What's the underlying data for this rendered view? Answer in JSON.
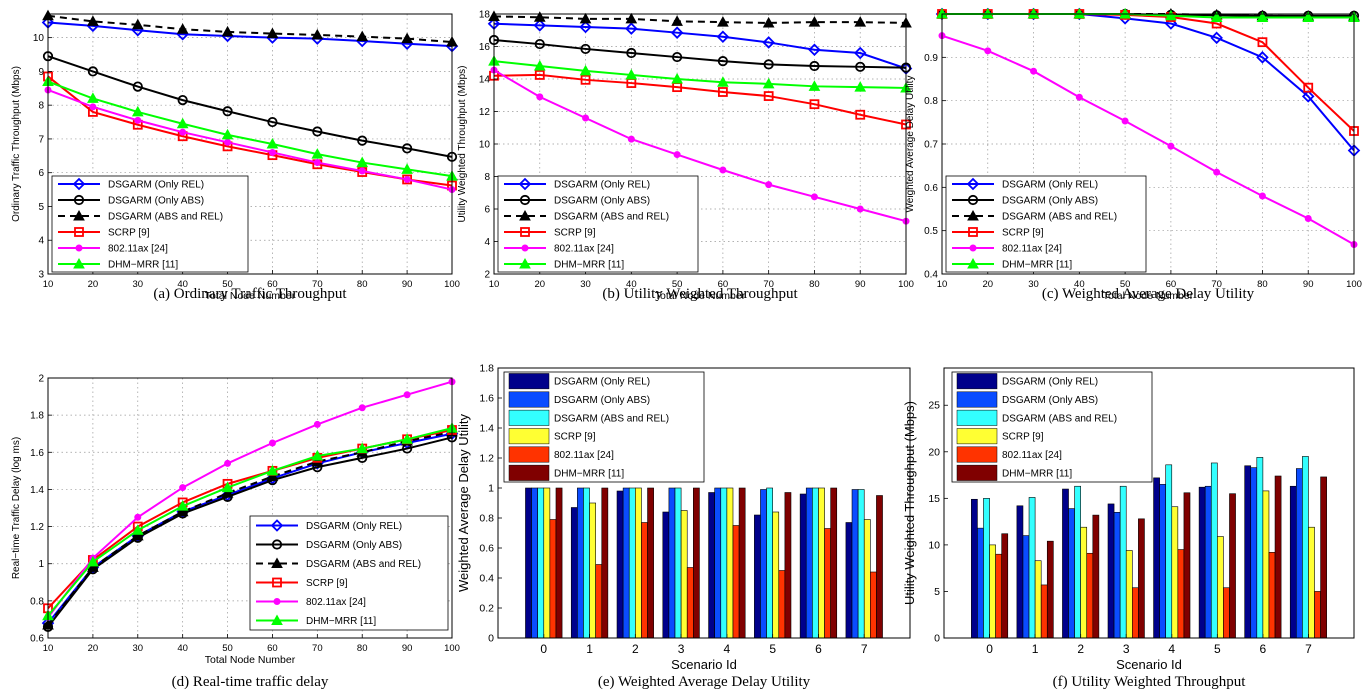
{
  "legend_line": [
    "DSGARM (Only REL)",
    "DSGARM (Only ABS)",
    "DSGARM (ABS and REL)",
    "SCRP [9]",
    "802.11ax [24]",
    "DHM−MRR [11]"
  ],
  "legend_bar": [
    "DSGARM (Only REL)",
    "DSGARM (Only ABS)",
    "DSGARM (ABS and REL)",
    "SCRP [9]",
    "802.11ax [24]",
    "DHM−MRR [11]"
  ],
  "line_colors": [
    "#0000ff",
    "#000000",
    "#000000",
    "#ff0000",
    "#ff00ff",
    "#00ff00"
  ],
  "line_markers": [
    "diamond",
    "circle",
    "triangle",
    "square",
    "dot",
    "triangle"
  ],
  "line_dashed": [
    false,
    false,
    true,
    false,
    false,
    false
  ],
  "bar_colors": [
    "#00008b",
    "#0a4cff",
    "#33ffff",
    "#ffff33",
    "#ff3300",
    "#800000"
  ],
  "chart_data": [
    {
      "type": "line",
      "caption": "(a) Ordinary Traffic Throughput",
      "xlabel": "Total Node Number",
      "ylabel": "Ordinary Traffic Throughput (Mbps)",
      "x": [
        10,
        20,
        30,
        40,
        50,
        60,
        70,
        80,
        90,
        100
      ],
      "xlim": [
        10,
        100
      ],
      "ylim": [
        3,
        10.7
      ],
      "yticks": [
        3,
        4,
        5,
        6,
        7,
        8,
        9,
        10
      ],
      "grid": true,
      "legend": "bottom-left",
      "series": [
        {
          "name": "DSGARM (Only REL)",
          "values": [
            10.45,
            10.35,
            10.22,
            10.1,
            10.05,
            10.0,
            9.97,
            9.9,
            9.82,
            9.75
          ]
        },
        {
          "name": "DSGARM (Only ABS)",
          "values": [
            9.45,
            9.0,
            8.55,
            8.15,
            7.82,
            7.5,
            7.22,
            6.95,
            6.72,
            6.47
          ]
        },
        {
          "name": "DSGARM (ABS and REL)",
          "values": [
            10.65,
            10.48,
            10.38,
            10.25,
            10.17,
            10.12,
            10.08,
            10.03,
            9.97,
            9.87
          ]
        },
        {
          "name": "SCRP [9]",
          "values": [
            8.85,
            7.8,
            7.42,
            7.08,
            6.78,
            6.52,
            6.25,
            6.02,
            5.8,
            5.62
          ]
        },
        {
          "name": "802.11ax [24]",
          "values": [
            8.45,
            7.95,
            7.55,
            7.2,
            6.9,
            6.6,
            6.3,
            6.05,
            5.8,
            5.5
          ]
        },
        {
          "name": "DHM−MRR [11]",
          "values": [
            8.7,
            8.2,
            7.8,
            7.45,
            7.12,
            6.85,
            6.55,
            6.3,
            6.1,
            5.9
          ]
        }
      ]
    },
    {
      "type": "line",
      "caption": "(b) Utility Weighted Throughput",
      "xlabel": "Total Node Number",
      "ylabel": "Utility Weighted Throughput (Mbps)",
      "x": [
        10,
        20,
        30,
        40,
        50,
        60,
        70,
        80,
        90,
        100
      ],
      "xlim": [
        10,
        100
      ],
      "ylim": [
        2,
        18
      ],
      "yticks": [
        2,
        4,
        6,
        8,
        10,
        12,
        14,
        16,
        18
      ],
      "grid": true,
      "legend": "bottom-left",
      "series": [
        {
          "name": "DSGARM (Only REL)",
          "values": [
            17.4,
            17.3,
            17.2,
            17.1,
            16.85,
            16.6,
            16.25,
            15.8,
            15.6,
            14.65
          ]
        },
        {
          "name": "DSGARM (Only ABS)",
          "values": [
            16.4,
            16.15,
            15.85,
            15.6,
            15.35,
            15.1,
            14.9,
            14.8,
            14.75,
            14.7
          ]
        },
        {
          "name": "DSGARM (ABS and REL)",
          "values": [
            17.85,
            17.8,
            17.7,
            17.7,
            17.55,
            17.5,
            17.45,
            17.5,
            17.5,
            17.45
          ]
        },
        {
          "name": "SCRP [9]",
          "values": [
            14.2,
            14.25,
            13.95,
            13.75,
            13.5,
            13.2,
            12.95,
            12.45,
            11.8,
            11.2
          ]
        },
        {
          "name": "802.11ax [24]",
          "values": [
            14.55,
            12.9,
            11.6,
            10.3,
            9.35,
            8.4,
            7.5,
            6.75,
            6.0,
            5.25
          ]
        },
        {
          "name": "DHM−MRR [11]",
          "values": [
            15.1,
            14.8,
            14.5,
            14.25,
            14.0,
            13.8,
            13.7,
            13.55,
            13.5,
            13.45
          ]
        }
      ]
    },
    {
      "type": "line",
      "caption": "(c) Weighted Average Delay Utility",
      "xlabel": "Total Node Number",
      "ylabel": "Weighted Average Delay Utility",
      "x": [
        10,
        20,
        30,
        40,
        50,
        60,
        70,
        80,
        90,
        100
      ],
      "xlim": [
        10,
        100
      ],
      "ylim": [
        0.4,
        1.0
      ],
      "yticks": [
        0.4,
        0.5,
        0.6,
        0.7,
        0.8,
        0.9
      ],
      "grid": true,
      "legend": "bottom-left",
      "series": [
        {
          "name": "DSGARM (Only REL)",
          "values": [
            1.0,
            1.0,
            1.0,
            1.0,
            0.99,
            0.978,
            0.945,
            0.9,
            0.81,
            0.685
          ]
        },
        {
          "name": "DSGARM (Only ABS)",
          "values": [
            1.0,
            1.0,
            1.0,
            1.0,
            1.0,
            0.998,
            0.997,
            0.996,
            0.996,
            0.996
          ]
        },
        {
          "name": "DSGARM (ABS and REL)",
          "values": [
            1.0,
            1.0,
            1.0,
            1.0,
            1.0,
            1.0,
            0.998,
            0.996,
            0.995,
            0.995
          ]
        },
        {
          "name": "SCRP [9]",
          "values": [
            1.0,
            1.0,
            1.0,
            1.0,
            0.998,
            0.993,
            0.978,
            0.935,
            0.83,
            0.73
          ]
        },
        {
          "name": "802.11ax [24]",
          "values": [
            0.95,
            0.915,
            0.868,
            0.808,
            0.753,
            0.695,
            0.635,
            0.58,
            0.528,
            0.468
          ]
        },
        {
          "name": "DHM−MRR [11]",
          "values": [
            1.0,
            1.0,
            1.0,
            1.0,
            1.0,
            0.996,
            0.992,
            0.992,
            0.992,
            0.992
          ]
        }
      ]
    },
    {
      "type": "line",
      "caption": "(d) Real-time traffic delay",
      "xlabel": "Total Node Number",
      "ylabel": "Real−time Traffic Delay (log ms)",
      "x": [
        10,
        20,
        30,
        40,
        50,
        60,
        70,
        80,
        90,
        100
      ],
      "xlim": [
        10,
        100
      ],
      "ylim": [
        0.6,
        2.0
      ],
      "yticks": [
        0.6,
        0.8,
        1,
        1.2,
        1.4,
        1.6,
        1.8,
        2
      ],
      "grid": true,
      "legend": "bottom-right",
      "series": [
        {
          "name": "DSGARM (Only REL)",
          "values": [
            0.68,
            0.98,
            1.15,
            1.28,
            1.37,
            1.46,
            1.54,
            1.6,
            1.65,
            1.7
          ]
        },
        {
          "name": "DSGARM (Only ABS)",
          "values": [
            0.66,
            0.97,
            1.14,
            1.27,
            1.36,
            1.45,
            1.52,
            1.57,
            1.62,
            1.68
          ]
        },
        {
          "name": "DSGARM (ABS and REL)",
          "values": [
            0.67,
            0.98,
            1.15,
            1.28,
            1.38,
            1.47,
            1.55,
            1.6,
            1.66,
            1.71
          ]
        },
        {
          "name": "SCRP [9]",
          "values": [
            0.76,
            1.02,
            1.2,
            1.33,
            1.43,
            1.5,
            1.57,
            1.62,
            1.67,
            1.72
          ]
        },
        {
          "name": "802.11ax [24]",
          "values": [
            0.71,
            1.03,
            1.25,
            1.41,
            1.54,
            1.65,
            1.75,
            1.84,
            1.91,
            1.98
          ]
        },
        {
          "name": "DHM−MRR [11]",
          "values": [
            0.72,
            1.01,
            1.18,
            1.31,
            1.41,
            1.5,
            1.58,
            1.62,
            1.67,
            1.73
          ]
        }
      ]
    },
    {
      "type": "bar",
      "caption": "(e) Weighted Average Delay Utility",
      "xlabel": "Scenario Id",
      "ylabel": "Weighted Average Delay Utility",
      "categories": [
        "0",
        "1",
        "2",
        "3",
        "4",
        "5",
        "6",
        "7"
      ],
      "ylim": [
        0,
        1.8
      ],
      "yticks": [
        0,
        0.2,
        0.4,
        0.6,
        0.8,
        1,
        1.2,
        1.4,
        1.6,
        1.8
      ],
      "grid": false,
      "legend": "top-left",
      "series": [
        {
          "name": "DSGARM (Only REL)",
          "values": [
            1.0,
            0.87,
            0.98,
            0.84,
            0.97,
            0.82,
            0.96,
            0.77
          ]
        },
        {
          "name": "DSGARM (Only ABS)",
          "values": [
            1.0,
            1.0,
            1.0,
            1.0,
            1.0,
            0.99,
            1.0,
            0.99
          ]
        },
        {
          "name": "DSGARM (ABS and REL)",
          "values": [
            1.0,
            1.0,
            1.0,
            1.0,
            1.0,
            1.0,
            1.0,
            0.99
          ]
        },
        {
          "name": "SCRP [9]",
          "values": [
            1.0,
            0.9,
            1.0,
            0.85,
            1.0,
            0.84,
            1.0,
            0.79
          ]
        },
        {
          "name": "802.11ax [24]",
          "values": [
            0.79,
            0.49,
            0.77,
            0.47,
            0.75,
            0.45,
            0.73,
            0.44
          ]
        },
        {
          "name": "DHM−MRR [11]",
          "values": [
            1.0,
            1.0,
            1.0,
            1.0,
            1.0,
            0.97,
            1.0,
            0.95
          ]
        }
      ]
    },
    {
      "type": "bar",
      "caption": "(f) Utility Weighted Throughput",
      "xlabel": "Scenario Id",
      "ylabel": "Utility Weighted Throughput (Mbps)",
      "categories": [
        "0",
        "1",
        "2",
        "3",
        "4",
        "5",
        "6",
        "7"
      ],
      "ylim": [
        0,
        29
      ],
      "yticks": [
        0,
        5,
        10,
        15,
        20,
        25
      ],
      "grid": false,
      "legend": "top-left",
      "series": [
        {
          "name": "DSGARM (Only REL)",
          "values": [
            14.9,
            14.2,
            16.0,
            14.4,
            17.2,
            16.2,
            18.5,
            16.3
          ]
        },
        {
          "name": "DSGARM (Only ABS)",
          "values": [
            11.8,
            11.0,
            13.9,
            13.5,
            16.5,
            16.3,
            18.3,
            18.2
          ]
        },
        {
          "name": "DSGARM (ABS and REL)",
          "values": [
            15.0,
            15.1,
            16.3,
            16.3,
            18.6,
            18.8,
            19.4,
            19.5
          ]
        },
        {
          "name": "SCRP [9]",
          "values": [
            10.0,
            8.3,
            11.9,
            9.4,
            14.1,
            10.9,
            15.8,
            11.9
          ]
        },
        {
          "name": "802.11ax [24]",
          "values": [
            9.0,
            5.7,
            9.1,
            5.4,
            9.5,
            5.4,
            9.2,
            5.0
          ]
        },
        {
          "name": "DHM−MRR [11]",
          "values": [
            11.2,
            10.4,
            13.2,
            12.8,
            15.6,
            15.5,
            17.4,
            17.3
          ]
        }
      ]
    }
  ]
}
